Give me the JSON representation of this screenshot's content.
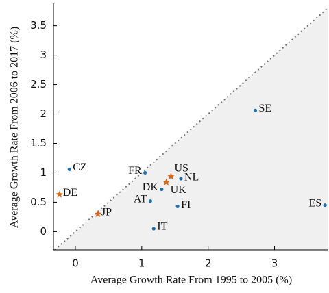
{
  "chart_data": {
    "type": "scatter",
    "xlabel": "Average Growth Rate From 1995 to 2005 (%)",
    "ylabel": "Average Growth Rate From 2006 to 2017 (%)",
    "labels": [
      "CZ",
      "DE",
      "JP",
      "FR",
      "US",
      "UK",
      "NL",
      "DK",
      "AT",
      "FI",
      "IT",
      "SE",
      "ES"
    ],
    "x": [
      -0.09,
      -0.24,
      0.34,
      1.05,
      1.44,
      1.37,
      1.59,
      1.3,
      1.13,
      1.54,
      1.18,
      2.71,
      3.76
    ],
    "y": [
      1.06,
      0.63,
      0.3,
      1.0,
      0.94,
      0.84,
      0.9,
      0.72,
      0.52,
      0.43,
      0.05,
      2.06,
      0.45
    ],
    "markers": [
      "circle",
      "star",
      "star",
      "circle",
      "star",
      "star",
      "circle",
      "circle",
      "circle",
      "circle",
      "circle",
      "circle",
      "circle"
    ],
    "marker_colors": {
      "circle": "#1f6fa8",
      "star": "#d4691d"
    },
    "xlim": [
      -0.33,
      3.81
    ],
    "ylim": [
      -0.31,
      3.88
    ],
    "xticks": [
      0,
      1,
      2,
      3
    ],
    "yticks": [
      0,
      0.5,
      1,
      1.5,
      2,
      2.5,
      3,
      3.5
    ],
    "diagonal": true
  }
}
